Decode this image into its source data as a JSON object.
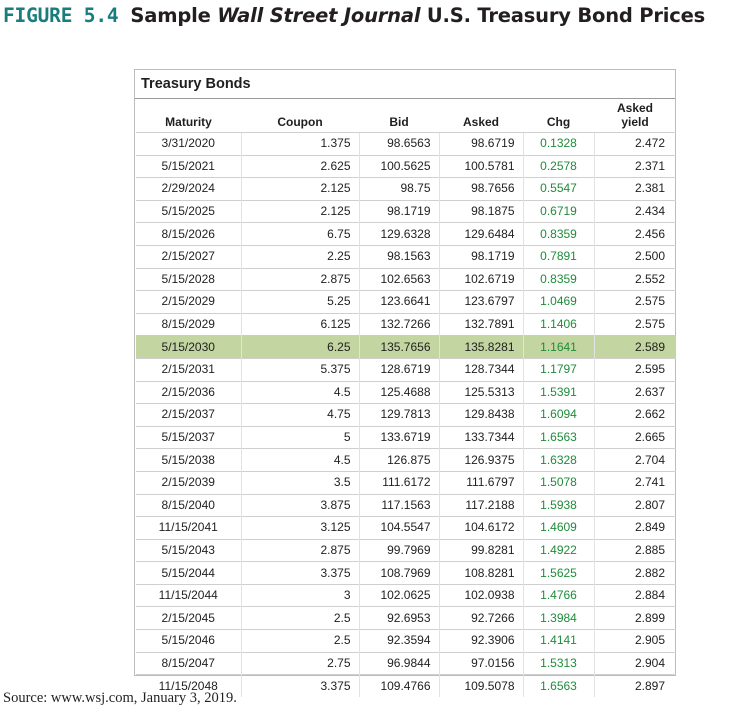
{
  "caption": {
    "label": "FIGURE 5.4",
    "prefix": "Sample ",
    "italic": "Wall Street Journal",
    "suffix": " U.S. Treasury Bond Prices"
  },
  "table": {
    "title": "Treasury Bonds",
    "headers": {
      "maturity": "Maturity",
      "coupon": "Coupon",
      "bid": "Bid",
      "asked": "Asked",
      "chg": "Chg",
      "yield_line1": "Asked",
      "yield_line2": "yield"
    },
    "highlight_color": "#c3d5a0",
    "chg_color": "#1e8c3a",
    "rows": [
      {
        "maturity": "3/31/2020",
        "coupon": "1.375",
        "bid": "98.6563",
        "asked": "98.6719",
        "chg": "0.1328",
        "yield": "2.472"
      },
      {
        "maturity": "5/15/2021",
        "coupon": "2.625",
        "bid": "100.5625",
        "asked": "100.5781",
        "chg": "0.2578",
        "yield": "2.371"
      },
      {
        "maturity": "2/29/2024",
        "coupon": "2.125",
        "bid": "98.75",
        "asked": "98.7656",
        "chg": "0.5547",
        "yield": "2.381"
      },
      {
        "maturity": "5/15/2025",
        "coupon": "2.125",
        "bid": "98.1719",
        "asked": "98.1875",
        "chg": "0.6719",
        "yield": "2.434"
      },
      {
        "maturity": "8/15/2026",
        "coupon": "6.75",
        "bid": "129.6328",
        "asked": "129.6484",
        "chg": "0.8359",
        "yield": "2.456"
      },
      {
        "maturity": "2/15/2027",
        "coupon": "2.25",
        "bid": "98.1563",
        "asked": "98.1719",
        "chg": "0.7891",
        "yield": "2.500"
      },
      {
        "maturity": "5/15/2028",
        "coupon": "2.875",
        "bid": "102.6563",
        "asked": "102.6719",
        "chg": "0.8359",
        "yield": "2.552"
      },
      {
        "maturity": "2/15/2029",
        "coupon": "5.25",
        "bid": "123.6641",
        "asked": "123.6797",
        "chg": "1.0469",
        "yield": "2.575"
      },
      {
        "maturity": "8/15/2029",
        "coupon": "6.125",
        "bid": "132.7266",
        "asked": "132.7891",
        "chg": "1.1406",
        "yield": "2.575"
      },
      {
        "maturity": "5/15/2030",
        "coupon": "6.25",
        "bid": "135.7656",
        "asked": "135.8281",
        "chg": "1.1641",
        "yield": "2.589",
        "highlight": true
      },
      {
        "maturity": "2/15/2031",
        "coupon": "5.375",
        "bid": "128.6719",
        "asked": "128.7344",
        "chg": "1.1797",
        "yield": "2.595"
      },
      {
        "maturity": "2/15/2036",
        "coupon": "4.5",
        "bid": "125.4688",
        "asked": "125.5313",
        "chg": "1.5391",
        "yield": "2.637"
      },
      {
        "maturity": "2/15/2037",
        "coupon": "4.75",
        "bid": "129.7813",
        "asked": "129.8438",
        "chg": "1.6094",
        "yield": "2.662"
      },
      {
        "maturity": "5/15/2037",
        "coupon": "5",
        "bid": "133.6719",
        "asked": "133.7344",
        "chg": "1.6563",
        "yield": "2.665"
      },
      {
        "maturity": "5/15/2038",
        "coupon": "4.5",
        "bid": "126.875",
        "asked": "126.9375",
        "chg": "1.6328",
        "yield": "2.704"
      },
      {
        "maturity": "2/15/2039",
        "coupon": "3.5",
        "bid": "111.6172",
        "asked": "111.6797",
        "chg": "1.5078",
        "yield": "2.741"
      },
      {
        "maturity": "8/15/2040",
        "coupon": "3.875",
        "bid": "117.1563",
        "asked": "117.2188",
        "chg": "1.5938",
        "yield": "2.807"
      },
      {
        "maturity": "11/15/2041",
        "coupon": "3.125",
        "bid": "104.5547",
        "asked": "104.6172",
        "chg": "1.4609",
        "yield": "2.849"
      },
      {
        "maturity": "5/15/2043",
        "coupon": "2.875",
        "bid": "99.7969",
        "asked": "99.8281",
        "chg": "1.4922",
        "yield": "2.885"
      },
      {
        "maturity": "5/15/2044",
        "coupon": "3.375",
        "bid": "108.7969",
        "asked": "108.8281",
        "chg": "1.5625",
        "yield": "2.882"
      },
      {
        "maturity": "11/15/2044",
        "coupon": "3",
        "bid": "102.0625",
        "asked": "102.0938",
        "chg": "1.4766",
        "yield": "2.884"
      },
      {
        "maturity": "2/15/2045",
        "coupon": "2.5",
        "bid": "92.6953",
        "asked": "92.7266",
        "chg": "1.3984",
        "yield": "2.899"
      },
      {
        "maturity": "5/15/2046",
        "coupon": "2.5",
        "bid": "92.3594",
        "asked": "92.3906",
        "chg": "1.4141",
        "yield": "2.905"
      },
      {
        "maturity": "8/15/2047",
        "coupon": "2.75",
        "bid": "96.9844",
        "asked": "97.0156",
        "chg": "1.5313",
        "yield": "2.904"
      },
      {
        "maturity": "11/15/2048",
        "coupon": "3.375",
        "bid": "109.4766",
        "asked": "109.5078",
        "chg": "1.6563",
        "yield": "2.897"
      }
    ]
  },
  "source": "Source: www.wsj.com, January 3, 2019."
}
